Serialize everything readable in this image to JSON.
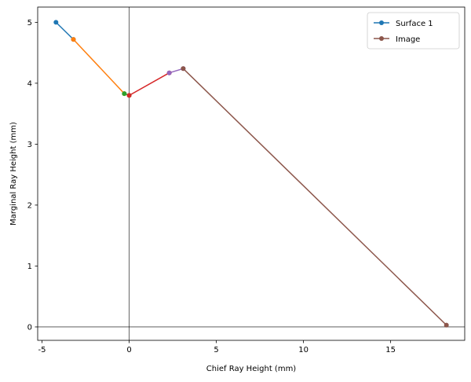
{
  "chart_data": {
    "type": "line",
    "xlabel": "Chief Ray Height (mm)",
    "ylabel": "Marginal Ray Height (mm)",
    "xlim": [
      -5.25,
      19.25
    ],
    "ylim": [
      -0.22,
      5.25
    ],
    "xticks": [
      -5,
      0,
      5,
      10,
      15
    ],
    "yticks": [
      0,
      1,
      2,
      3,
      4,
      5
    ],
    "reference_lines": {
      "x": 0,
      "y": 0
    },
    "grid": false,
    "legend_position": "top-right",
    "segments": [
      {
        "x": [
          -4.2,
          -3.2
        ],
        "y": [
          5.0,
          4.72
        ],
        "color": "#1f77b4"
      },
      {
        "x": [
          -3.2,
          -0.28
        ],
        "y": [
          4.72,
          3.83
        ],
        "color": "#ff7f0e"
      },
      {
        "x": [
          -0.28,
          0.0
        ],
        "y": [
          3.83,
          3.8
        ],
        "color": "#2ca02c"
      },
      {
        "x": [
          0.0,
          2.3
        ],
        "y": [
          3.8,
          4.17
        ],
        "color": "#d62728"
      },
      {
        "x": [
          2.3,
          3.1
        ],
        "y": [
          4.17,
          4.24
        ],
        "color": "#9467bd"
      },
      {
        "x": [
          3.1,
          18.2
        ],
        "y": [
          4.24,
          0.03
        ],
        "color": "#8c564b"
      }
    ],
    "legend": [
      {
        "label": "Surface 1",
        "color": "#1f77b4"
      },
      {
        "label": "Image",
        "color": "#8c564b"
      }
    ]
  }
}
